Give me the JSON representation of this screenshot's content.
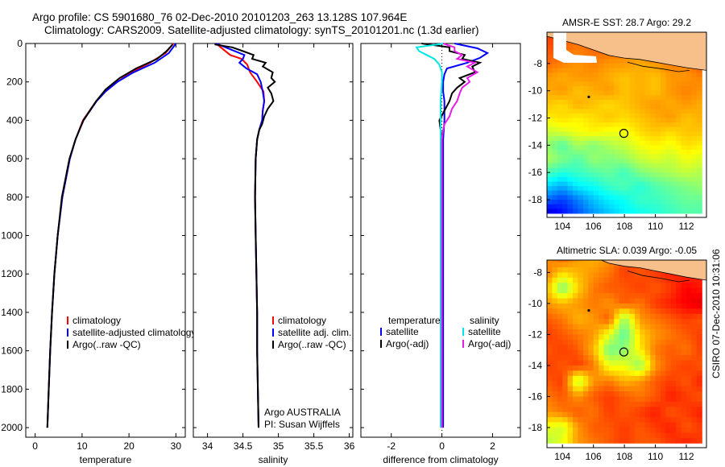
{
  "header": {
    "line1": "Argo profile: CS 5901680_76 02-Dec-2010 20101203_263 13.128S 107.964E",
    "line2": "Climatology: CARS2009. Satellite-adjusted climatology: synTS_20101201.nc (1.3d earlier)"
  },
  "side_label": "CSIRO 07-Dec-2010 10:31:06",
  "colors": {
    "red": "#ff0000",
    "blue": "#0000ff",
    "black": "#000000",
    "cyan": "#00e5e5",
    "magenta": "#e61ee6",
    "land": "#f7c08a"
  },
  "chart_data": [
    {
      "type": "line",
      "id": "temp",
      "xlabel": "temperature",
      "ylabel": "",
      "xlim": [
        -2,
        32
      ],
      "ylim": [
        2050,
        0
      ],
      "x_ticks": [
        "0",
        "10",
        "20",
        "30"
      ],
      "x_tick_values": [
        0,
        10,
        20,
        30
      ],
      "y_ticks": [
        "0",
        "200",
        "400",
        "600",
        "800",
        "1000",
        "1200",
        "1400",
        "1600",
        "1800",
        "2000"
      ],
      "y_tick_values": [
        0,
        200,
        400,
        600,
        800,
        1000,
        1200,
        1400,
        1600,
        1800,
        2000
      ],
      "legend": [
        "climatology",
        "satellite-adjusted climatology",
        "Argo(..raw -QC)"
      ],
      "series": [
        {
          "name": "climatology",
          "color": "red",
          "depth": [
            0,
            50,
            100,
            150,
            200,
            250,
            300,
            400,
            500,
            600,
            800,
            1000,
            1200,
            1400,
            1600,
            1800,
            2000
          ],
          "values": [
            29.5,
            27.8,
            24.5,
            20.5,
            17.5,
            15,
            13,
            10.2,
            8.6,
            7.4,
            5.8,
            4.8,
            4.1,
            3.6,
            3.2,
            2.9,
            2.6
          ]
        },
        {
          "name": "satellite-adjusted climatology",
          "color": "blue",
          "depth": [
            0,
            50,
            100,
            150,
            200,
            250,
            300,
            400,
            500,
            600,
            800,
            1000,
            1200,
            1400,
            1600,
            1800,
            2000
          ],
          "values": [
            30,
            28.5,
            25.5,
            21,
            17.5,
            15,
            13.1,
            10.3,
            8.6,
            7.4,
            5.8,
            4.8,
            4.1,
            3.6,
            3.2,
            2.9,
            2.6
          ]
        },
        {
          "name": "Argo(..raw -QC)",
          "color": "black",
          "depth": [
            5,
            40,
            80,
            130,
            180,
            240,
            300,
            400,
            500,
            600,
            800,
            1000,
            1200,
            1400,
            1600,
            1800,
            2000
          ],
          "values": [
            29.3,
            28,
            26,
            21.5,
            18,
            15,
            13,
            10.3,
            8.6,
            7.3,
            5.7,
            4.8,
            4.1,
            3.6,
            3.2,
            2.9,
            2.6
          ]
        }
      ]
    },
    {
      "type": "line",
      "id": "sal",
      "xlabel": "salinity",
      "xlim": [
        33.8,
        36.05
      ],
      "ylim": [
        2050,
        0
      ],
      "x_ticks": [
        "34",
        "34.5",
        "35",
        "35.5",
        "36"
      ],
      "x_tick_values": [
        34,
        34.5,
        35,
        35.5,
        36
      ],
      "legend": [
        "climatology",
        "satellite adj. clim.",
        "Argo(..raw -QC)"
      ],
      "annotation": [
        "Argo AUSTRALIA",
        "PI: Susan Wijffels"
      ],
      "series": [
        {
          "name": "climatology",
          "color": "red",
          "depth": [
            0,
            30,
            60,
            80,
            110,
            150,
            200,
            250,
            300,
            350,
            400,
            450,
            500,
            600,
            800,
            1000,
            1200,
            1400,
            1600,
            1800,
            2000
          ],
          "values": [
            34.12,
            34.22,
            34.32,
            34.48,
            34.56,
            34.6,
            34.7,
            34.79,
            34.8,
            34.78,
            34.77,
            34.73,
            34.7,
            34.68,
            34.67,
            34.68,
            34.69,
            34.7,
            34.7,
            34.71,
            34.72
          ]
        },
        {
          "name": "satellite adj. clim.",
          "color": "blue",
          "depth": [
            0,
            30,
            60,
            80,
            100,
            130,
            160,
            200,
            250,
            300,
            350,
            400,
            450,
            500,
            600,
            800,
            1000,
            1200,
            1400,
            1600,
            1800,
            2000
          ],
          "values": [
            34.12,
            34.32,
            34.52,
            34.5,
            34.45,
            34.55,
            34.7,
            34.75,
            34.78,
            34.8,
            34.78,
            34.77,
            34.73,
            34.7,
            34.68,
            34.67,
            34.68,
            34.69,
            34.7,
            34.7,
            34.71,
            34.72
          ]
        },
        {
          "name": "Argo(..raw -QC)",
          "color": "black",
          "depth": [
            5,
            20,
            40,
            60,
            80,
            100,
            120,
            150,
            180,
            200,
            230,
            260,
            300,
            340,
            380,
            420,
            450,
            500,
            600,
            800,
            1000,
            1200,
            1400,
            1600,
            1800,
            2000
          ],
          "values": [
            34.1,
            34.35,
            34.5,
            34.65,
            34.63,
            34.82,
            34.78,
            34.92,
            34.9,
            34.95,
            34.85,
            34.9,
            34.93,
            34.85,
            34.8,
            34.77,
            34.73,
            34.7,
            34.68,
            34.67,
            34.68,
            34.69,
            34.7,
            34.7,
            34.71,
            34.72
          ]
        }
      ]
    },
    {
      "type": "line",
      "id": "diff",
      "xlabel": "difference from climatology",
      "xlim": [
        -3.2,
        3.1
      ],
      "ylim": [
        2050,
        0
      ],
      "x_ticks": [
        "-2",
        "0",
        "2"
      ],
      "x_tick_values": [
        -2,
        0,
        2
      ],
      "legend_left_title": "temperature",
      "legend_right_title": "salinity",
      "legend_left": [
        "satellite",
        "Argo(-adj)"
      ],
      "legend_right": [
        "satellite",
        "Argo(-adj)"
      ],
      "series": [
        {
          "name": "temperature satellite",
          "color": "blue",
          "depth": [
            0,
            25,
            50,
            75,
            100,
            130,
            160,
            200,
            250,
            300,
            400,
            500,
            600,
            800,
            1000,
            1200,
            1400,
            1600,
            1800,
            2000
          ],
          "values": [
            0.5,
            1.4,
            1.8,
            1.5,
            1.0,
            0.2,
            0.1,
            0.05,
            0.05,
            0.1,
            0.1,
            0.05,
            0.05,
            0.05,
            0.05,
            0.05,
            0.05,
            0.05,
            0.05,
            0.05
          ]
        },
        {
          "name": "temperature Argo(-adj)",
          "color": "black",
          "depth": [
            0,
            20,
            40,
            60,
            80,
            100,
            120,
            150,
            180,
            200,
            230,
            260,
            300,
            350,
            400,
            500,
            600,
            800,
            1000,
            1200,
            1400,
            1600,
            1800,
            2000
          ],
          "values": [
            -0.8,
            0.3,
            0.3,
            0.9,
            0.8,
            1.5,
            1.2,
            1.3,
            0.7,
            0.9,
            0.6,
            0.4,
            0.3,
            0.1,
            -0.1,
            0.0,
            -0.05,
            0.0,
            -0.05,
            0.0,
            -0.05,
            0.0,
            -0.05,
            0.0
          ]
        },
        {
          "name": "salinity satellite",
          "color": "cyan",
          "depth": [
            0,
            20,
            40,
            60,
            80,
            110,
            150,
            200,
            300,
            400,
            500,
            600,
            800,
            1000,
            1200,
            1400,
            1600,
            1800,
            2000
          ],
          "values": [
            0.1,
            -1.0,
            -0.9,
            -0.6,
            -0.3,
            -0.1,
            0.0,
            0.0,
            -0.05,
            -0.05,
            -0.05,
            -0.05,
            -0.05,
            -0.05,
            -0.05,
            -0.05,
            -0.05,
            -0.05,
            -0.05
          ]
        },
        {
          "name": "salinity Argo(-adj)",
          "color": "magenta",
          "depth": [
            0,
            20,
            40,
            60,
            80,
            100,
            120,
            150,
            180,
            200,
            230,
            260,
            300,
            340,
            380,
            420,
            450,
            500,
            600,
            800,
            1000,
            1200,
            1400,
            1600,
            1800,
            2000
          ],
          "values": [
            0.05,
            0.5,
            0.5,
            0.8,
            0.6,
            1.3,
            1.0,
            1.4,
            1.0,
            1.1,
            0.8,
            0.7,
            0.6,
            0.4,
            0.3,
            0.1,
            0.05,
            0.0,
            0.0,
            0.0,
            0.0,
            0.0,
            0.0,
            0.0,
            0.0,
            0.0
          ]
        }
      ]
    },
    {
      "type": "heatmap",
      "id": "sst",
      "title": "AMSR-E SST: 28.7  Argo: 29.2",
      "xlim": [
        103,
        113.3
      ],
      "ylim": [
        -19.3,
        -5.7
      ],
      "x_ticks": [
        "104",
        "106",
        "108",
        "110",
        "112"
      ],
      "x_tick_values": [
        104,
        106,
        108,
        110,
        112
      ],
      "y_ticks": [
        "-8",
        "-10",
        "-12",
        "-14",
        "-16",
        "-18"
      ],
      "y_tick_values": [
        -8,
        -10,
        -12,
        -14,
        -16,
        -18
      ],
      "float_position": {
        "lon": 107.964,
        "lat": -13.128
      },
      "grid_lon": [
        103,
        104,
        105,
        106,
        107,
        108,
        109,
        110,
        111,
        112,
        113
      ],
      "grid_lat": [
        -6,
        -7,
        -8,
        -9,
        -10,
        -11,
        -12,
        -13,
        -14,
        -15,
        -16,
        -17,
        -18,
        -19
      ],
      "values": [
        [
          29.6,
          29.5,
          29.4,
          29.6,
          29.5,
          29.4,
          29.5,
          29.6,
          29.5,
          29.6,
          29.7
        ],
        [
          29.5,
          29.4,
          29.3,
          29.4,
          29.4,
          29.3,
          29.3,
          29.4,
          29.4,
          29.5,
          29.6
        ],
        [
          29.4,
          29.3,
          29.2,
          29.3,
          29.2,
          29.2,
          29.1,
          29.2,
          29.3,
          29.3,
          29.5
        ],
        [
          29.2,
          29.1,
          29.2,
          29.2,
          29.1,
          29.0,
          29.1,
          29.0,
          29.2,
          29.2,
          29.3
        ],
        [
          29.1,
          29.2,
          29.0,
          29.1,
          29.2,
          29.0,
          29.1,
          29.0,
          29.2,
          29.3,
          29.2
        ],
        [
          29.0,
          28.9,
          29.1,
          29.0,
          28.9,
          29.0,
          29.1,
          29.2,
          29.1,
          29.2,
          29.1
        ],
        [
          28.8,
          28.9,
          28.8,
          28.9,
          29.0,
          28.9,
          29.0,
          29.1,
          29.2,
          29.0,
          29.1
        ],
        [
          28.5,
          28.6,
          28.7,
          28.8,
          28.7,
          28.7,
          28.9,
          29.0,
          28.9,
          29.0,
          29.0
        ],
        [
          28.3,
          28.0,
          28.4,
          28.2,
          28.4,
          28.5,
          28.7,
          28.8,
          28.7,
          28.9,
          28.8
        ],
        [
          28.4,
          28.2,
          28.0,
          28.3,
          28.2,
          28.3,
          28.5,
          28.6,
          28.5,
          28.7,
          28.6
        ],
        [
          28.0,
          27.8,
          27.9,
          28.0,
          28.1,
          27.9,
          28.2,
          28.3,
          28.4,
          28.5,
          28.4
        ],
        [
          27.5,
          27.3,
          27.6,
          27.7,
          27.9,
          28.0,
          27.8,
          28.0,
          28.1,
          28.2,
          28.3
        ],
        [
          27.0,
          26.8,
          27.1,
          27.4,
          27.6,
          27.7,
          27.9,
          27.9,
          28.0,
          28.1,
          28.1
        ],
        [
          26.3,
          26.6,
          26.9,
          27.2,
          27.4,
          27.6,
          27.7,
          27.8,
          27.9,
          28.0,
          28.0
        ]
      ]
    },
    {
      "type": "heatmap",
      "id": "sla",
      "title": "Altimetric SLA: 0.039  Argo: -0.05",
      "xlim": [
        103,
        113.3
      ],
      "ylim": [
        -19.3,
        -7.2
      ],
      "x_ticks": [
        "104",
        "106",
        "108",
        "110",
        "112"
      ],
      "x_tick_values": [
        104,
        106,
        108,
        110,
        112
      ],
      "y_ticks": [
        "-8",
        "-10",
        "-12",
        "-14",
        "-16",
        "-18"
      ],
      "y_tick_values": [
        -8,
        -10,
        -12,
        -14,
        -16,
        -18
      ],
      "float_position": {
        "lon": 107.964,
        "lat": -13.128
      },
      "grid_lon": [
        103,
        104,
        105,
        106,
        107,
        108,
        109,
        110,
        111,
        112,
        113
      ],
      "grid_lat": [
        -7,
        -8,
        -9,
        -10,
        -11,
        -12,
        -13,
        -14,
        -15,
        -16,
        -17,
        -18,
        -19
      ],
      "values": [
        [
          0.1,
          0.12,
          0.1,
          0.09,
          0.1,
          0.12,
          0.13,
          0.12,
          0.13,
          0.14,
          0.13
        ],
        [
          0.11,
          0.08,
          0.09,
          0.1,
          0.11,
          0.13,
          0.12,
          0.13,
          0.14,
          0.13,
          0.14
        ],
        [
          0.09,
          0.02,
          0.08,
          0.11,
          0.12,
          0.12,
          0.13,
          0.12,
          0.13,
          0.15,
          0.14
        ],
        [
          0.1,
          0.09,
          0.1,
          0.11,
          0.1,
          0.12,
          0.11,
          0.13,
          0.14,
          0.15,
          0.16
        ],
        [
          0.12,
          0.11,
          0.09,
          0.1,
          0.12,
          0.03,
          0.1,
          0.11,
          0.12,
          0.13,
          0.12
        ],
        [
          0.13,
          0.12,
          0.11,
          0.1,
          0.06,
          0.01,
          0.08,
          0.1,
          0.11,
          0.12,
          0.13
        ],
        [
          0.12,
          0.13,
          0.12,
          0.09,
          0.02,
          0.03,
          0.07,
          0.11,
          0.12,
          0.11,
          0.13
        ],
        [
          0.13,
          0.12,
          0.13,
          0.11,
          0.06,
          0.06,
          0.03,
          0.1,
          0.12,
          0.13,
          0.12
        ],
        [
          0.12,
          0.13,
          0.04,
          0.1,
          0.11,
          0.09,
          0.1,
          0.12,
          0.13,
          0.12,
          0.14
        ],
        [
          0.11,
          0.12,
          0.1,
          0.12,
          0.13,
          0.12,
          0.11,
          0.12,
          0.14,
          0.13,
          0.12
        ],
        [
          0.1,
          0.11,
          0.12,
          0.11,
          0.13,
          0.12,
          0.13,
          0.14,
          0.12,
          0.13,
          0.14
        ],
        [
          0.06,
          0.05,
          0.1,
          0.12,
          0.12,
          0.13,
          0.12,
          0.13,
          0.14,
          0.12,
          0.13
        ],
        [
          0.04,
          0.06,
          0.1,
          0.11,
          0.12,
          0.13,
          0.12,
          0.12,
          0.13,
          0.14,
          0.13
        ]
      ]
    }
  ]
}
